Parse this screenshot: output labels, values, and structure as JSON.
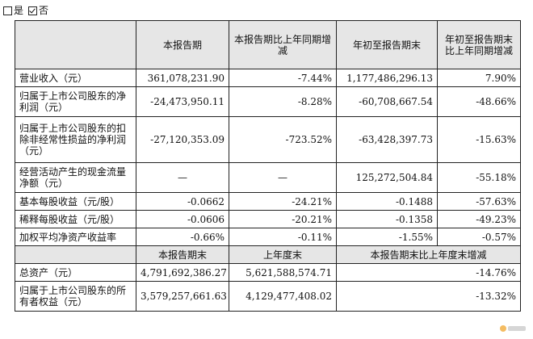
{
  "checkbox": {
    "yes_label": "是",
    "no_label": "否",
    "yes_checked": false,
    "no_checked": true
  },
  "header1": [
    "本报告期",
    "本报告期比上年同期增减",
    "年初至报告期末",
    "年初至报告期末比上年同期增减"
  ],
  "rows": [
    {
      "label": "营业收入（元）",
      "c1": "361,078,231.90",
      "c2": "-7.44%",
      "c3": "1,177,486,296.13",
      "c4": "7.90%"
    },
    {
      "label": "归属于上市公司股东的净利润（元）",
      "c1": "-24,473,950.11",
      "c2": "-8.28%",
      "c3": "-60,708,667.54",
      "c4": "-48.66%"
    },
    {
      "label": "归属于上市公司股东的扣除非经常性损益的净利润（元）",
      "c1": "-27,120,353.09",
      "c2": "-723.52%",
      "c3": "-63,428,397.73",
      "c4": "-15.63%"
    },
    {
      "label": "经营活动产生的现金流量净额（元）",
      "c1": "—",
      "c2": "—",
      "c3": "125,272,504.84",
      "c4": "-55.18%"
    },
    {
      "label": "基本每股收益（元/股）",
      "c1": "-0.0662",
      "c2": "-24.21%",
      "c3": "-0.1488",
      "c4": "-57.63%"
    },
    {
      "label": "稀释每股收益（元/股）",
      "c1": "-0.0606",
      "c2": "-20.21%",
      "c3": "-0.1358",
      "c4": "-49.23%"
    },
    {
      "label": "加权平均净资产收益率",
      "c1": "-0.66%",
      "c2": "-0.11%",
      "c3": "-1.55%",
      "c4": "-0.57%"
    }
  ],
  "header2": [
    "本报告期末",
    "上年度末",
    "本报告期末比上年度末增减"
  ],
  "rows2": [
    {
      "label": "总资产（元）",
      "c1": "4,791,692,386.27",
      "c2": "5,621,588,574.71",
      "c3": "-14.76%"
    },
    {
      "label": "归属于上市公司股东的所有者权益（元）",
      "c1": "3,579,257,661.63",
      "c2": "4,129,477,408.02",
      "c3": "-13.32%"
    }
  ]
}
